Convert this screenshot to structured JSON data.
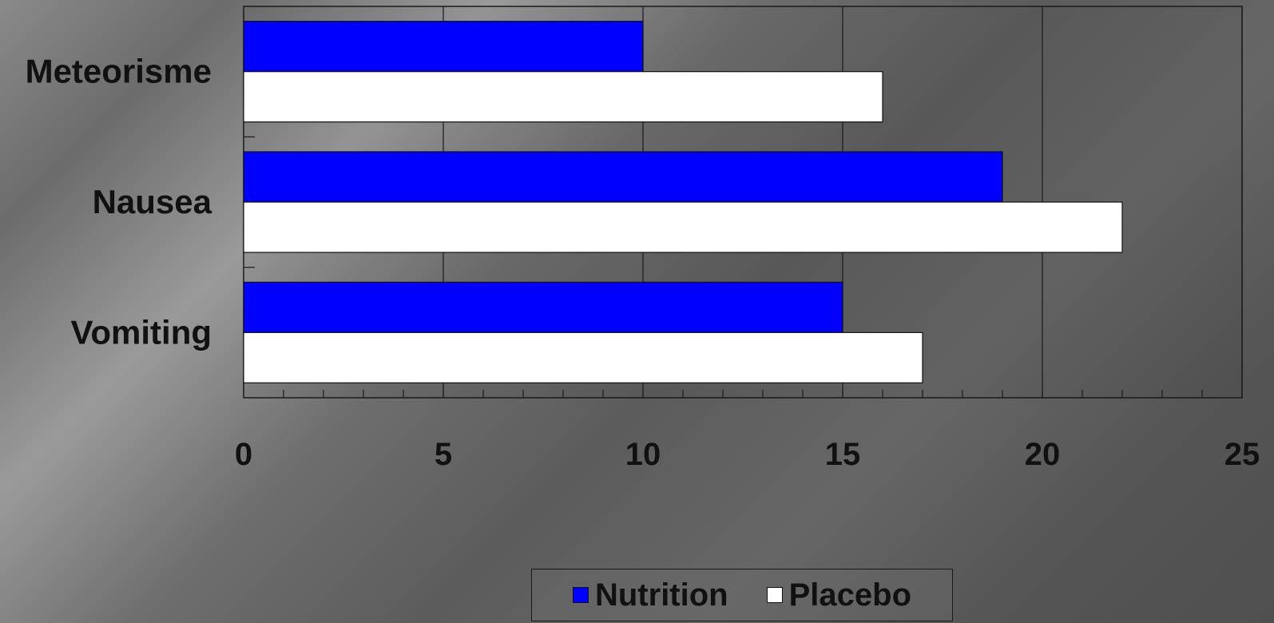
{
  "chart_data": {
    "type": "bar",
    "orientation": "horizontal",
    "categories": [
      "Meteorisme",
      "Nausea",
      "Vomiting"
    ],
    "series": [
      {
        "name": "Nutrition",
        "values": [
          10,
          19,
          15
        ],
        "color": "#0000ff"
      },
      {
        "name": "Placebo",
        "values": [
          16,
          22,
          17
        ],
        "color": "#ffffff"
      }
    ],
    "x_ticks": [
      0,
      5,
      10,
      15,
      20,
      25
    ],
    "xlim": [
      0,
      25
    ],
    "grid": true,
    "legend_position": "bottom",
    "title": "",
    "xlabel": "",
    "ylabel": ""
  }
}
